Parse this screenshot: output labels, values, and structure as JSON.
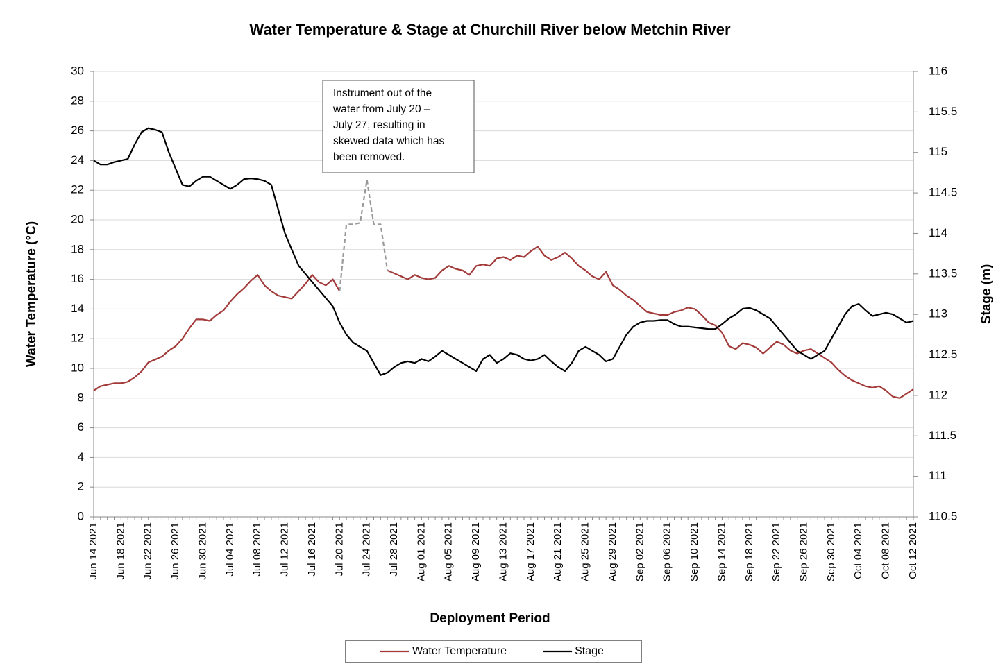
{
  "chart_data": {
    "type": "line",
    "title": "Water Temperature & Stage at Churchill River below Metchin River",
    "xlabel": "Deployment Period",
    "ylabel": "Water Temperature (°C)",
    "y2label": "Stage (m)",
    "annotation": [
      "Instrument out of the",
      "water from July 20 –",
      "July 27, resulting in",
      "skewed data which has",
      "been removed."
    ],
    "categories": [
      "Jun 14 2021",
      null,
      null,
      null,
      "Jun 18 2021",
      null,
      null,
      null,
      "Jun 22 2021",
      null,
      null,
      null,
      "Jun 26 2021",
      null,
      null,
      null,
      "Jun 30 2021",
      null,
      null,
      null,
      "Jul 04 2021",
      null,
      null,
      null,
      "Jul 08 2021",
      null,
      null,
      null,
      "Jul 12 2021",
      null,
      null,
      null,
      "Jul 16 2021",
      null,
      null,
      null,
      "Jul 20 2021",
      null,
      null,
      null,
      "Jul 24 2021",
      null,
      null,
      null,
      "Jul 28 2021",
      null,
      null,
      null,
      "Aug 01 2021",
      null,
      null,
      null,
      "Aug 05 2021",
      null,
      null,
      null,
      "Aug 09 2021",
      null,
      null,
      null,
      "Aug 13 2021",
      null,
      null,
      null,
      "Aug 17 2021",
      null,
      null,
      null,
      "Aug 21 2021",
      null,
      null,
      null,
      "Aug 25 2021",
      null,
      null,
      null,
      "Aug 29 2021",
      null,
      null,
      null,
      "Sep 02 2021",
      null,
      null,
      null,
      "Sep 06 2021",
      null,
      null,
      null,
      "Sep 10 2021",
      null,
      null,
      null,
      "Sep 14 2021",
      null,
      null,
      null,
      "Sep 18 2021",
      null,
      null,
      null,
      "Sep 22 2021",
      null,
      null,
      null,
      "Sep 26 2021",
      null,
      null,
      null,
      "Sep 30 2021",
      null,
      null,
      null,
      "Oct 04 2021",
      null,
      null,
      null,
      "Oct 08 2021",
      null,
      null,
      null,
      "Oct 12 2021"
    ],
    "series": [
      {
        "name": "Water Temperature",
        "color": "#a33a3a",
        "values": [
          8.5,
          8.8,
          8.9,
          9.0,
          9.0,
          9.1,
          9.4,
          9.8,
          10.4,
          10.6,
          10.8,
          11.2,
          11.5,
          12.0,
          12.7,
          13.3,
          13.3,
          13.2,
          13.6,
          13.9,
          14.5,
          15.0,
          15.4,
          15.9,
          16.3,
          15.6,
          15.2,
          14.9,
          14.8,
          14.7,
          15.2,
          15.7,
          16.3,
          15.8,
          15.6,
          16.0,
          15.2,
          null,
          null,
          null,
          null,
          null,
          null,
          16.6,
          16.4,
          16.2,
          16.0,
          16.3,
          16.1,
          16.0,
          16.1,
          16.6,
          16.9,
          16.7,
          16.6,
          16.3,
          16.9,
          17.0,
          16.9,
          17.4,
          17.5,
          17.3,
          17.6,
          17.5,
          17.9,
          18.2,
          17.6,
          17.3,
          17.5,
          17.8,
          17.4,
          16.9,
          16.6,
          16.2,
          16.0,
          16.5,
          15.6,
          15.3,
          14.9,
          14.6,
          14.2,
          13.8,
          13.7,
          13.6,
          13.6,
          13.8,
          13.9,
          14.1,
          14.0,
          13.6,
          13.1,
          12.9,
          12.4,
          11.5,
          11.3,
          11.7,
          11.6,
          11.4,
          11.0,
          11.4,
          11.8,
          11.6,
          11.2,
          11.0,
          11.2,
          11.3,
          11.0,
          10.7,
          10.4,
          9.9,
          9.5,
          9.2,
          9.0,
          8.8,
          8.7,
          8.8,
          8.5,
          8.1,
          8.0,
          8.3,
          8.6
        ]
      },
      {
        "name": "Stage",
        "color": "#000000",
        "axis": "y2",
        "values": [
          114.9,
          114.85,
          114.85,
          114.88,
          114.9,
          114.92,
          115.1,
          115.25,
          115.3,
          115.28,
          115.25,
          115.0,
          114.8,
          114.6,
          114.58,
          114.65,
          114.7,
          114.7,
          114.65,
          114.6,
          114.55,
          114.6,
          114.67,
          114.68,
          114.67,
          114.65,
          114.6,
          114.3,
          114.0,
          113.8,
          113.6,
          113.5,
          113.4,
          113.3,
          113.2,
          113.1,
          112.9,
          112.75,
          112.65,
          112.6,
          112.55,
          112.4,
          112.25,
          112.28,
          112.35,
          112.4,
          112.42,
          112.4,
          112.45,
          112.42,
          112.48,
          112.55,
          112.5,
          112.45,
          112.4,
          112.35,
          112.3,
          112.45,
          112.5,
          112.4,
          112.45,
          112.52,
          112.5,
          112.45,
          112.43,
          112.45,
          112.5,
          112.42,
          112.35,
          112.3,
          112.4,
          112.55,
          112.6,
          112.55,
          112.5,
          112.42,
          112.45,
          112.6,
          112.75,
          112.85,
          112.9,
          112.92,
          112.92,
          112.93,
          112.93,
          112.88,
          112.85,
          112.85,
          112.84,
          112.83,
          112.82,
          112.82,
          112.88,
          112.95,
          113.0,
          113.07,
          113.08,
          113.05,
          113.0,
          112.95,
          112.85,
          112.75,
          112.65,
          112.55,
          112.5,
          112.45,
          112.5,
          112.55,
          112.7,
          112.85,
          113.0,
          113.1,
          113.13,
          113.05,
          112.98,
          113.0,
          113.02,
          113.0,
          112.95,
          112.9,
          112.92
        ]
      },
      {
        "color": "#999999",
        "dash": true,
        "values": [
          null,
          null,
          null,
          null,
          null,
          null,
          null,
          null,
          null,
          null,
          null,
          null,
          null,
          null,
          null,
          null,
          null,
          null,
          null,
          null,
          null,
          null,
          null,
          null,
          null,
          null,
          null,
          null,
          null,
          null,
          null,
          null,
          null,
          null,
          null,
          null,
          15.2,
          19.7,
          19.7,
          19.8,
          22.7,
          19.7,
          19.7,
          16.6,
          null,
          null,
          null,
          null,
          null,
          null,
          null,
          null,
          null,
          null,
          null,
          null,
          null,
          null,
          null,
          null,
          null,
          null,
          null,
          null,
          null,
          null,
          null,
          null,
          null,
          null,
          null,
          null,
          null,
          null,
          null,
          null,
          null,
          null,
          null,
          null,
          null,
          null,
          null,
          null,
          null,
          null,
          null,
          null,
          null,
          null,
          null,
          null,
          null,
          null,
          null,
          null,
          null,
          null,
          null,
          null,
          null,
          null,
          null,
          null,
          null,
          null,
          null,
          null,
          null,
          null,
          null,
          null,
          null,
          null,
          null,
          null,
          null,
          null,
          null,
          null,
          null
        ]
      }
    ],
    "ylim": [
      0,
      30
    ],
    "yticks": [
      0,
      2,
      4,
      6,
      8,
      10,
      12,
      14,
      16,
      18,
      20,
      22,
      24,
      26,
      28,
      30
    ],
    "y2lim": [
      110.5,
      116
    ],
    "y2ticks": [
      110.5,
      111,
      111.5,
      112,
      112.5,
      113,
      113.5,
      114,
      114.5,
      115,
      115.5,
      116
    ],
    "grid": true,
    "legend": "bottom"
  }
}
